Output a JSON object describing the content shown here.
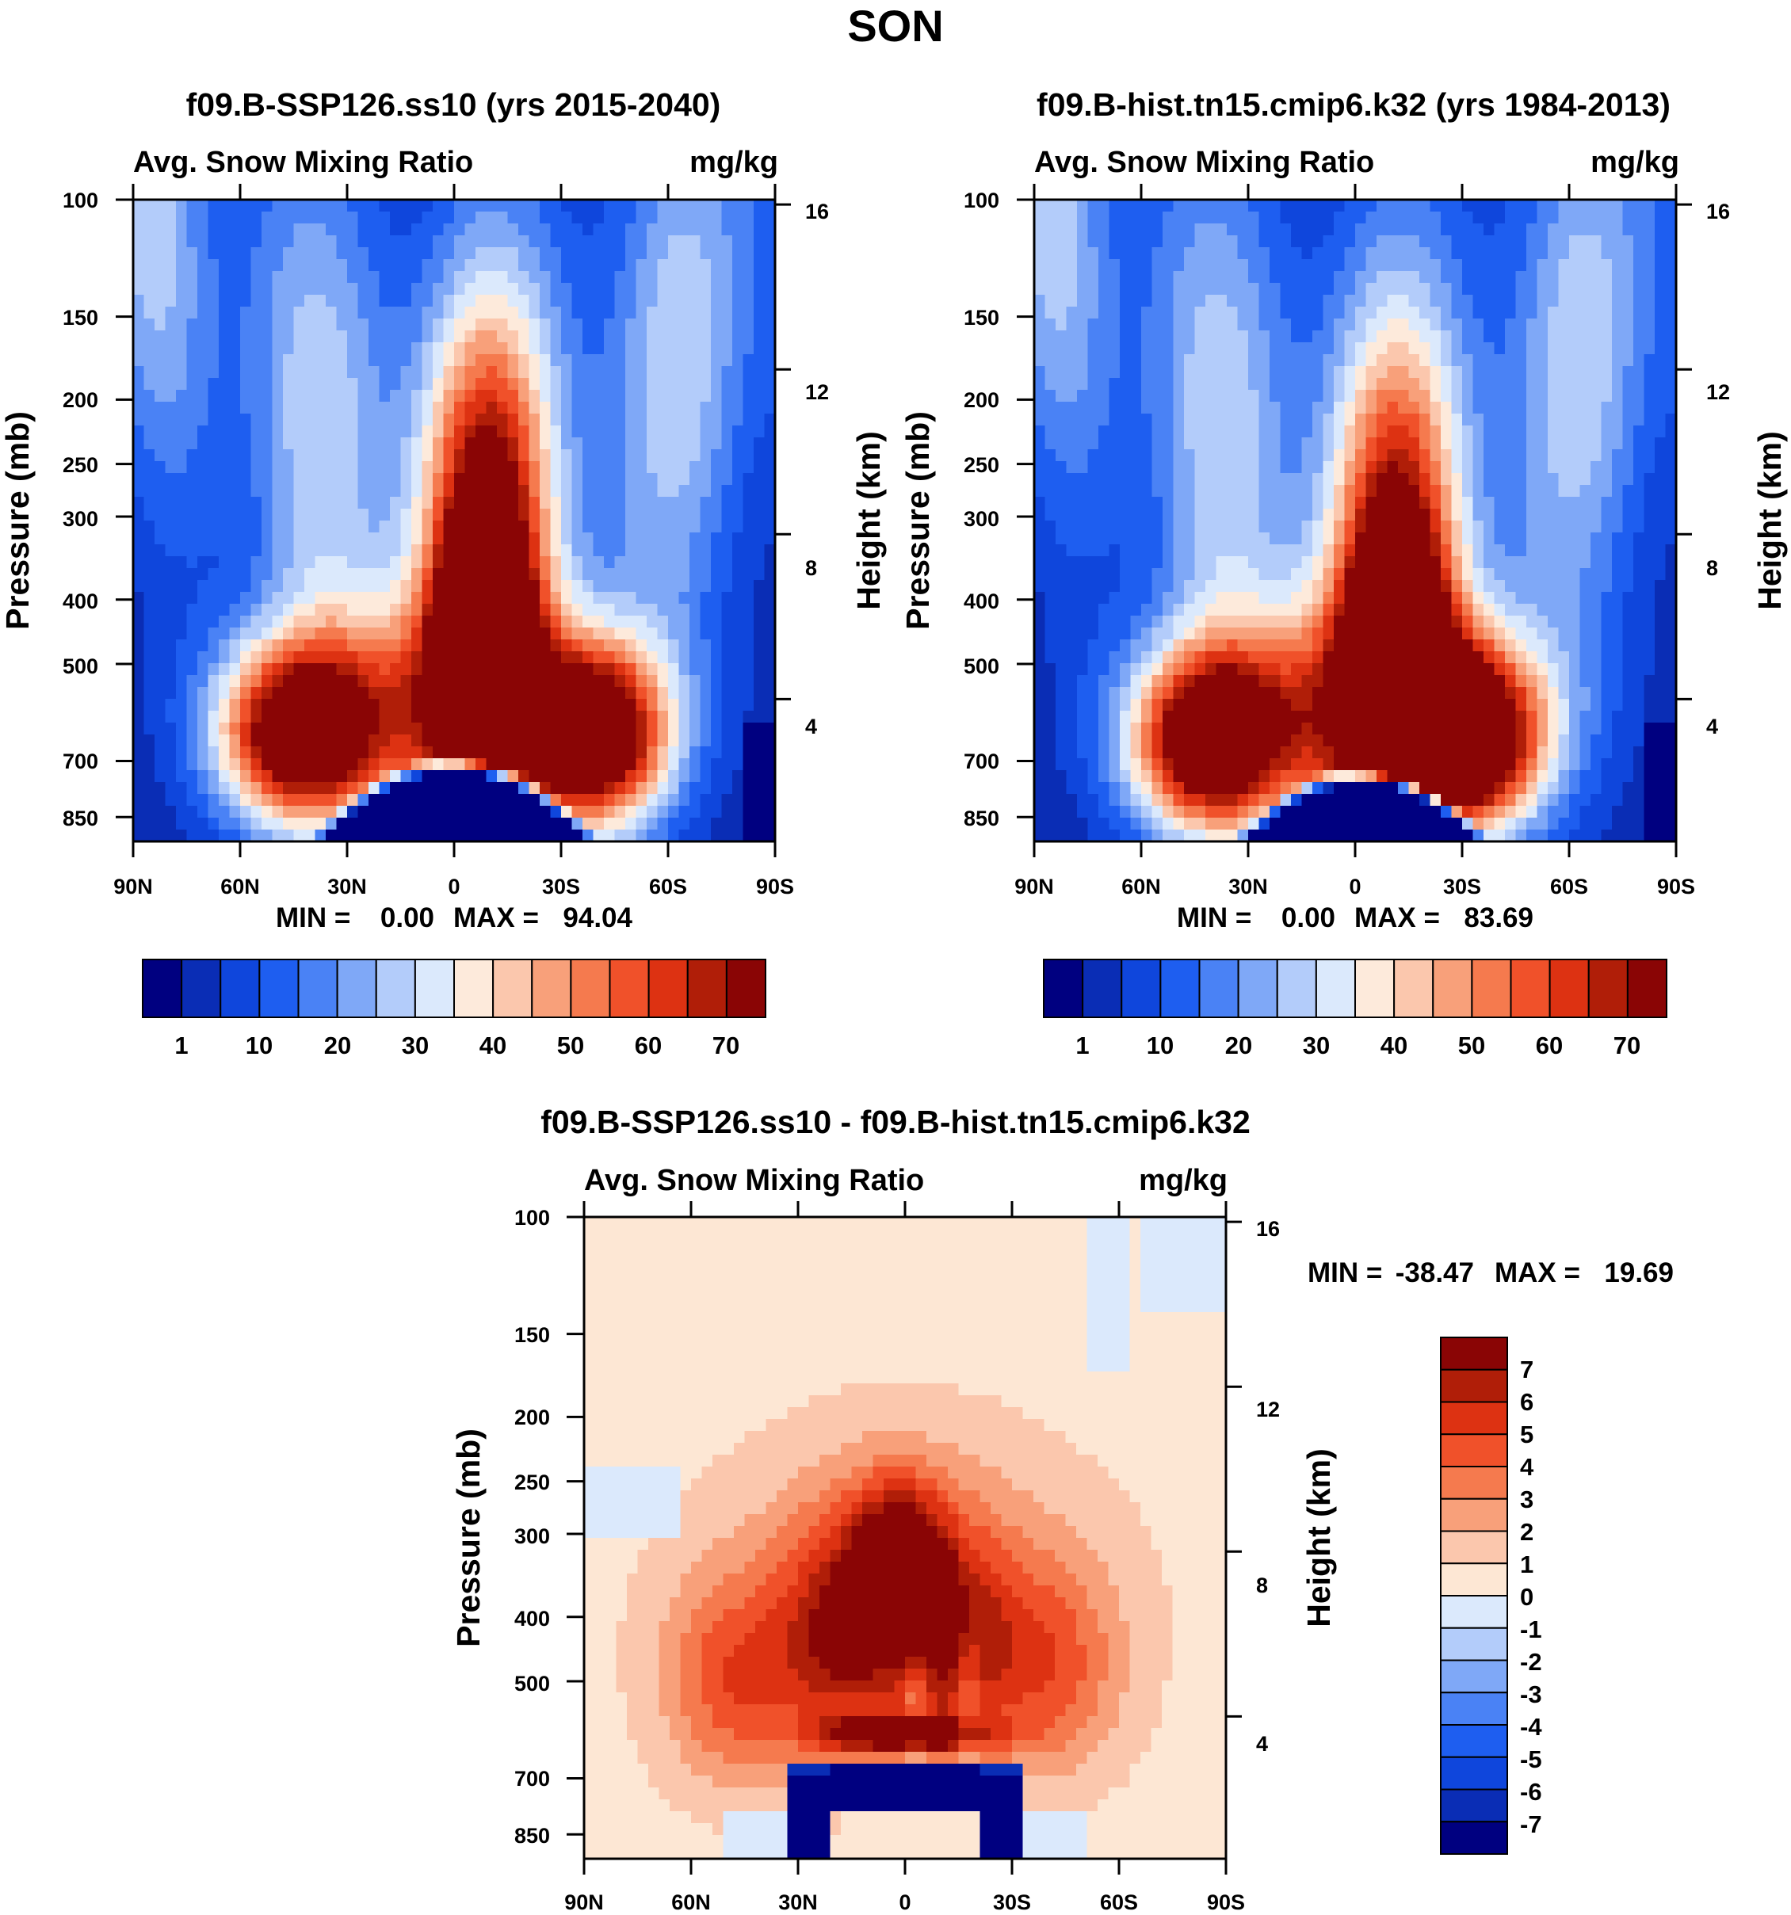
{
  "figure": {
    "title": "SON"
  },
  "colors": {
    "abs_levels": [
      "#000080",
      "#0a2db5",
      "#0f46dc",
      "#1e5ef0",
      "#4a82f5",
      "#7fa8f7",
      "#b3ccfa",
      "#dbe9fc",
      "#fdeadb",
      "#fbc7ad",
      "#f8a07a",
      "#f57a4e",
      "#f0512a",
      "#dd3212",
      "#b01e08",
      "#8a0505"
    ],
    "diff_levels": [
      "#000080",
      "#0a2db5",
      "#0f46dc",
      "#1e5ef0",
      "#4a82f5",
      "#7fa8f7",
      "#b3ccfa",
      "#dbe9fc",
      "#fde7d4",
      "#fbc7ad",
      "#f8a07a",
      "#f57a4e",
      "#f0512a",
      "#dd3212",
      "#b01e08",
      "#8a0505"
    ]
  },
  "chart_data": [
    {
      "type": "heatmap",
      "title": "f09.B-SSP126.ss10 (yrs 2015-2040)",
      "left_string": "Avg. Snow Mixing Ratio",
      "right_string": "mg/kg",
      "ylabel": "Pressure (mb)",
      "ylabel_right": "Height (km)",
      "x_ticks": [
        "90N",
        "60N",
        "30N",
        "0",
        "30S",
        "60S",
        "90S"
      ],
      "y_ticks": [
        "100",
        "150",
        "200",
        "250",
        "300",
        "400",
        "500",
        "700",
        "850"
      ],
      "y_ticks_right": [
        "16",
        "12",
        "8",
        "4"
      ],
      "xlim": [
        -90,
        90
      ],
      "ylim": [
        100,
        925
      ],
      "stats": {
        "min_label": "MIN =",
        "min_value": "0.00",
        "max_label": "MAX =",
        "max_value": "94.04"
      },
      "colorbar_labels": [
        "1",
        "10",
        "20",
        "30",
        "40",
        "50",
        "60",
        "70"
      ],
      "field": {
        "upper_lat": 8,
        "upper_pres": 340,
        "ndry_lat": -45,
        "ndry_pres": 640,
        "sdry_lat": 40,
        "sdry_pres": 645,
        "peak": 94.04,
        "trop_lat": 0,
        "trop_halfwidth": 30,
        "trop_pres": 712
      }
    },
    {
      "type": "heatmap",
      "title": "f09.B-hist.tn15.cmip6.k32 (yrs 1984-2013)",
      "left_string": "Avg. Snow Mixing Ratio",
      "right_string": "mg/kg",
      "ylabel": "Pressure (mb)",
      "ylabel_right": "Height (km)",
      "x_ticks": [
        "90N",
        "60N",
        "30N",
        "0",
        "30S",
        "60S",
        "90S"
      ],
      "y_ticks": [
        "100",
        "150",
        "200",
        "250",
        "300",
        "400",
        "500",
        "700",
        "850"
      ],
      "y_ticks_right": [
        "16",
        "12",
        "8",
        "4"
      ],
      "xlim": [
        -90,
        90
      ],
      "ylim": [
        100,
        925
      ],
      "stats": {
        "min_label": "MIN =",
        "min_value": "0.00",
        "max_label": "MAX =",
        "max_value": "83.69"
      },
      "colorbar_labels": [
        "1",
        "10",
        "20",
        "30",
        "40",
        "50",
        "60",
        "70"
      ],
      "field": {
        "upper_lat": 11,
        "upper_pres": 400,
        "ndry_lat": -42,
        "ndry_pres": 660,
        "sdry_lat": 33,
        "sdry_pres": 650,
        "peak": 83.69,
        "trop_lat": 2,
        "trop_halfwidth": 28,
        "trop_pres": 740
      }
    },
    {
      "type": "heatmap",
      "title": "f09.B-SSP126.ss10 - f09.B-hist.tn15.cmip6.k32",
      "left_string": "Avg. Snow Mixing Ratio",
      "right_string": "mg/kg",
      "ylabel": "Pressure (mb)",
      "ylabel_right": "Height (km)",
      "x_ticks": [
        "90N",
        "60N",
        "30N",
        "0",
        "30S",
        "60S",
        "90S"
      ],
      "y_ticks": [
        "100",
        "150",
        "200",
        "250",
        "300",
        "400",
        "500",
        "700",
        "850"
      ],
      "y_ticks_right": [
        "16",
        "12",
        "8",
        "4"
      ],
      "xlim": [
        -90,
        90
      ],
      "ylim": [
        100,
        925
      ],
      "stats": {
        "min_label": "MIN =",
        "min_value": "-38.47",
        "max_label": "MAX =",
        "max_value": "19.69"
      },
      "colorbar_labels": [
        "7",
        "6",
        "5",
        "4",
        "3",
        "2",
        "1",
        "0",
        "-1",
        "-2",
        "-3",
        "-4",
        "-5",
        "-6",
        "-7"
      ],
      "field": {
        "min": -38.47,
        "max": 19.69
      }
    }
  ]
}
